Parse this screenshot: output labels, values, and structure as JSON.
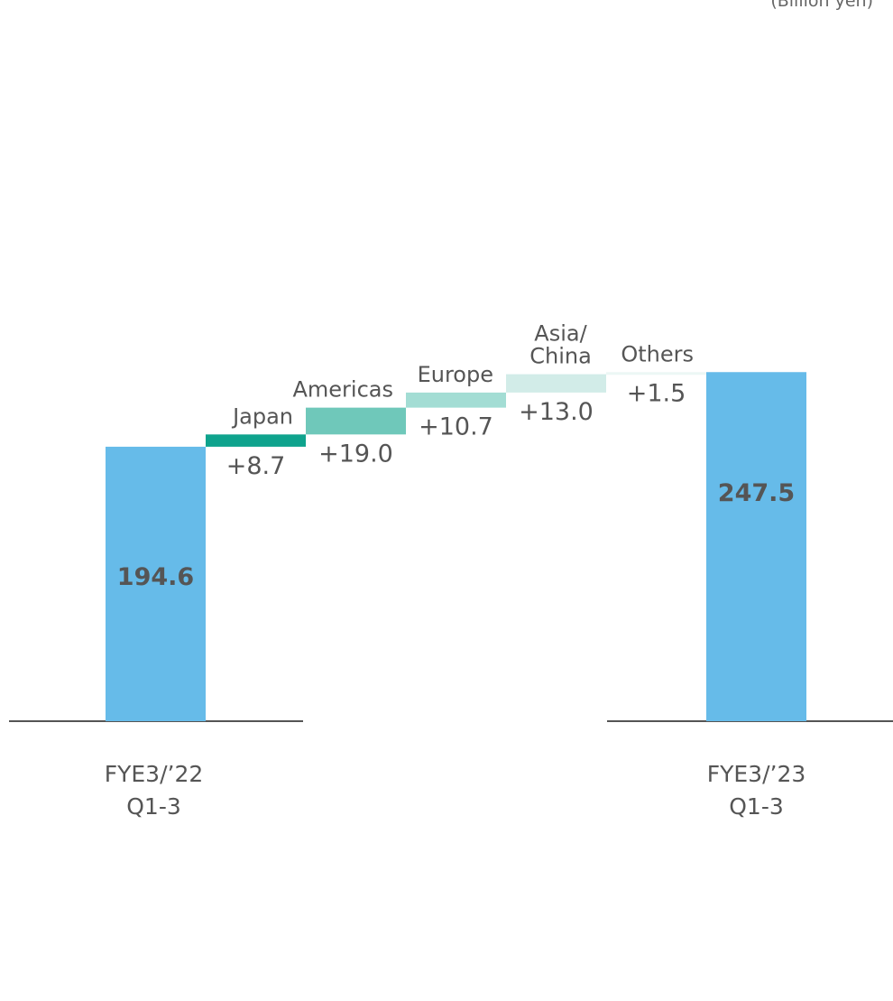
{
  "unit_label": "(Billion yen)",
  "chart_data": {
    "type": "bar",
    "subtype": "waterfall",
    "title": "",
    "xlabel": "",
    "ylabel": "",
    "ylim": [
      0,
      260
    ],
    "grid": false,
    "legend": "none",
    "colors": {
      "total": "#66BBE9",
      "Japan": "#0EA38D",
      "Americas": "#6FC8BA",
      "Europe": "#A3DDD4",
      "Asia/China": "#D2ECE8",
      "Others": "#ECF7F5",
      "baseline": "#555555"
    },
    "bars": [
      {
        "kind": "total",
        "category_lines": [
          "FYE3/’22",
          "Q1-3"
        ],
        "value": 194.6,
        "label": "194.6"
      },
      {
        "kind": "delta",
        "name_lines": [
          "Japan"
        ],
        "value": 8.7,
        "label": "+8.7"
      },
      {
        "kind": "delta",
        "name_lines": [
          "Americas"
        ],
        "value": 19.0,
        "label": "+19.0"
      },
      {
        "kind": "delta",
        "name_lines": [
          "Europe"
        ],
        "value": 10.7,
        "label": "+10.7"
      },
      {
        "kind": "delta",
        "name_lines": [
          "Asia/",
          "China"
        ],
        "value": 13.0,
        "label": "+13.0"
      },
      {
        "kind": "delta",
        "name_lines": [
          "Others"
        ],
        "value": 1.5,
        "label": "+1.5"
      },
      {
        "kind": "total",
        "category_lines": [
          "FYE3/’23",
          "Q1-3"
        ],
        "value": 247.5,
        "label": "247.5"
      }
    ]
  }
}
